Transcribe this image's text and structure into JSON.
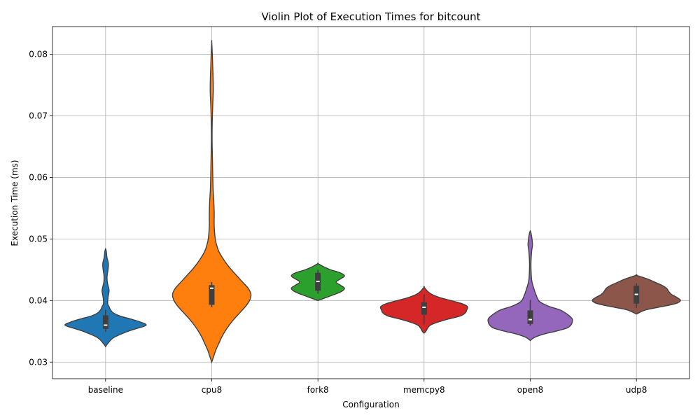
{
  "chart_data": {
    "type": "violin",
    "title": "Violin Plot of Execution Times for bitcount",
    "xlabel": "Configuration",
    "ylabel": "Execution Time (ms)",
    "ylim": [
      0.0273,
      0.0845
    ],
    "yticks": [
      0.03,
      0.04,
      0.05,
      0.06,
      0.07,
      0.08
    ],
    "ytick_labels": [
      "0.03",
      "0.04",
      "0.05",
      "0.06",
      "0.07",
      "0.08"
    ],
    "grid": true,
    "categories": [
      "baseline",
      "cpu8",
      "fork8",
      "memcpy8",
      "open8",
      "udp8"
    ],
    "series": [
      {
        "category": "baseline",
        "color": "#1f77b4",
        "q1": 0.0354,
        "median": 0.036,
        "q3": 0.0376,
        "whisker_low": 0.0349,
        "whisker_high": 0.0385,
        "density": [
          [
            0.0325,
            0
          ],
          [
            0.033,
            3
          ],
          [
            0.034,
            12
          ],
          [
            0.035,
            32
          ],
          [
            0.0355,
            46
          ],
          [
            0.036,
            58
          ],
          [
            0.0365,
            50
          ],
          [
            0.037,
            36
          ],
          [
            0.0375,
            20
          ],
          [
            0.038,
            11
          ],
          [
            0.0385,
            7
          ],
          [
            0.039,
            5
          ],
          [
            0.0395,
            3
          ],
          [
            0.0405,
            3.5
          ],
          [
            0.0415,
            5
          ],
          [
            0.042,
            4.5
          ],
          [
            0.043,
            2.5
          ],
          [
            0.044,
            2.2
          ],
          [
            0.045,
            3.5
          ],
          [
            0.046,
            4
          ],
          [
            0.047,
            2
          ],
          [
            0.048,
            1
          ],
          [
            0.0484,
            0
          ]
        ]
      },
      {
        "category": "cpu8",
        "color": "#ff7f0e",
        "q1": 0.0393,
        "median": 0.042,
        "q3": 0.0425,
        "whisker_low": 0.0389,
        "whisker_high": 0.043,
        "density": [
          [
            0.03,
            0
          ],
          [
            0.031,
            3
          ],
          [
            0.032,
            6
          ],
          [
            0.033,
            10
          ],
          [
            0.034,
            14
          ],
          [
            0.035,
            19
          ],
          [
            0.036,
            25
          ],
          [
            0.037,
            32
          ],
          [
            0.038,
            40
          ],
          [
            0.039,
            48
          ],
          [
            0.04,
            54
          ],
          [
            0.041,
            56
          ],
          [
            0.042,
            52
          ],
          [
            0.043,
            44
          ],
          [
            0.044,
            36
          ],
          [
            0.045,
            28
          ],
          [
            0.046,
            21
          ],
          [
            0.047,
            15
          ],
          [
            0.048,
            10
          ],
          [
            0.049,
            7
          ],
          [
            0.05,
            5
          ],
          [
            0.052,
            3.5
          ],
          [
            0.054,
            3.5
          ],
          [
            0.056,
            3
          ],
          [
            0.058,
            2
          ],
          [
            0.06,
            1.5
          ],
          [
            0.063,
            1
          ],
          [
            0.066,
            0.5
          ],
          [
            0.069,
            0.7
          ],
          [
            0.072,
            1.5
          ],
          [
            0.074,
            2.2
          ],
          [
            0.076,
            2
          ],
          [
            0.078,
            1.4
          ],
          [
            0.08,
            0.8
          ],
          [
            0.082,
            0
          ]
        ]
      },
      {
        "category": "fork8",
        "color": "#2ca02c",
        "q1": 0.0416,
        "median": 0.0431,
        "q3": 0.0445,
        "whisker_low": 0.0411,
        "whisker_high": 0.045,
        "density": [
          [
            0.04,
            0
          ],
          [
            0.0405,
            12
          ],
          [
            0.041,
            24
          ],
          [
            0.0415,
            34
          ],
          [
            0.042,
            38
          ],
          [
            0.0425,
            32
          ],
          [
            0.043,
            26
          ],
          [
            0.0435,
            32
          ],
          [
            0.044,
            38
          ],
          [
            0.0445,
            32
          ],
          [
            0.045,
            18
          ],
          [
            0.0455,
            8
          ],
          [
            0.046,
            0
          ]
        ]
      },
      {
        "category": "memcpy8",
        "color": "#d62728",
        "q1": 0.0377,
        "median": 0.0389,
        "q3": 0.0397,
        "whisker_low": 0.0361,
        "whisker_high": 0.041,
        "density": [
          [
            0.0347,
            0
          ],
          [
            0.035,
            2.5
          ],
          [
            0.0355,
            5
          ],
          [
            0.036,
            9
          ],
          [
            0.0365,
            20
          ],
          [
            0.037,
            35
          ],
          [
            0.0375,
            52
          ],
          [
            0.038,
            59
          ],
          [
            0.0385,
            61
          ],
          [
            0.039,
            62
          ],
          [
            0.0395,
            54
          ],
          [
            0.04,
            38
          ],
          [
            0.0405,
            22
          ],
          [
            0.041,
            11
          ],
          [
            0.0415,
            5
          ],
          [
            0.0422,
            0
          ]
        ]
      },
      {
        "category": "open8",
        "color": "#9467bd",
        "q1": 0.0362,
        "median": 0.0369,
        "q3": 0.0384,
        "whisker_low": 0.0359,
        "whisker_high": 0.0401,
        "density": [
          [
            0.0335,
            0
          ],
          [
            0.034,
            6
          ],
          [
            0.0345,
            18
          ],
          [
            0.035,
            36
          ],
          [
            0.0355,
            52
          ],
          [
            0.036,
            58
          ],
          [
            0.0365,
            60
          ],
          [
            0.037,
            60
          ],
          [
            0.0375,
            56
          ],
          [
            0.038,
            50
          ],
          [
            0.0385,
            42
          ],
          [
            0.039,
            28
          ],
          [
            0.0395,
            18
          ],
          [
            0.04,
            12
          ],
          [
            0.041,
            8
          ],
          [
            0.042,
            5
          ],
          [
            0.043,
            2.5
          ],
          [
            0.044,
            1.5
          ],
          [
            0.046,
            1
          ],
          [
            0.048,
            2
          ],
          [
            0.049,
            3.2
          ],
          [
            0.05,
            2.5
          ],
          [
            0.051,
            1
          ],
          [
            0.0513,
            0
          ]
        ]
      },
      {
        "category": "udp8",
        "color": "#8c564b",
        "q1": 0.0395,
        "median": 0.041,
        "q3": 0.0424,
        "whisker_low": 0.0388,
        "whisker_high": 0.0428,
        "density": [
          [
            0.0378,
            0
          ],
          [
            0.0385,
            14
          ],
          [
            0.039,
            36
          ],
          [
            0.0395,
            56
          ],
          [
            0.04,
            63
          ],
          [
            0.0405,
            58
          ],
          [
            0.041,
            50
          ],
          [
            0.0415,
            46
          ],
          [
            0.042,
            43
          ],
          [
            0.0425,
            36
          ],
          [
            0.043,
            26
          ],
          [
            0.0435,
            16
          ],
          [
            0.0441,
            0
          ]
        ]
      }
    ]
  }
}
